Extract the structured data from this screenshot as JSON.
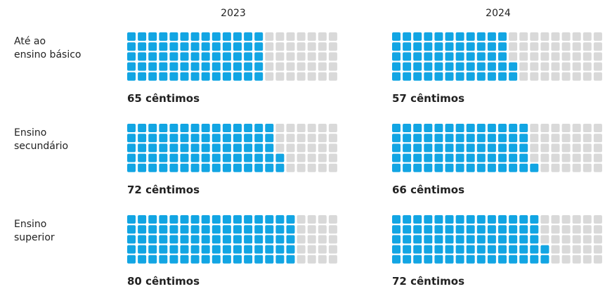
{
  "chart_data": {
    "type": "waffle",
    "categories": [
      "Até ao\nensino básico",
      "Ensino\nsecundário",
      "Ensino\nsuperior"
    ],
    "series": [
      {
        "name": "2023",
        "values": [
          65,
          72,
          80
        ],
        "value_labels": [
          "65 cêntimos",
          "72 cêntimos",
          "80 cêntimos"
        ]
      },
      {
        "name": "2024",
        "values": [
          57,
          66,
          72
        ],
        "value_labels": [
          "57 cêntimos",
          "66 cêntimos",
          "72 cêntimos"
        ]
      }
    ],
    "total": 100,
    "rows": 5,
    "color": "#12a5e3",
    "empty_color": "#d9d9d9"
  }
}
